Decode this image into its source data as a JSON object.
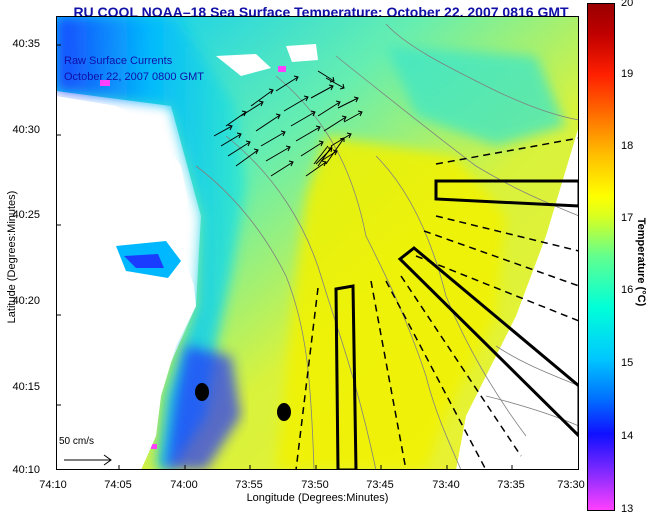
{
  "title": "RU COOL  NOAA–18  Sea Surface Temperature:  October 22, 2007 0816 GMT",
  "legend": {
    "line1": "Raw Surface Currents",
    "line2": "October 22, 2007 0800 GMT"
  },
  "scale_label": "50 cm/s",
  "y_axis": {
    "label": "Latitude (Degrees:Minutes)",
    "ticks": [
      "40:35",
      "40:30",
      "40:25",
      "40:20",
      "40:15",
      "40:10"
    ]
  },
  "x_axis": {
    "label": "Longitude (Degrees:Minutes)",
    "ticks": [
      "74:10",
      "74:05",
      "74:00",
      "73:55",
      "73:50",
      "73:45",
      "73:40",
      "73:35",
      "73:30"
    ]
  },
  "colorbar": {
    "label": "Temperature (°C)",
    "ticks": [
      "20",
      "19",
      "18",
      "17",
      "16",
      "15",
      "14",
      "13"
    ],
    "min": 13,
    "max": 20,
    "colors": [
      "#ff3fff",
      "#1010ff",
      "#00c8ff",
      "#00ffcc",
      "#ffff00",
      "#ff8800",
      "#ff0000",
      "#a00000"
    ]
  },
  "markers": [
    {
      "name": "site-marker-1",
      "lon_label": "73:59",
      "lat_label": "40:14.5"
    },
    {
      "name": "site-marker-2",
      "lon_label": "73:52.5",
      "lat_label": "40:13.5"
    }
  ],
  "colors": {
    "title": "#1010a8",
    "land": "#ffffff",
    "contour": "#808080",
    "vector": "#000000",
    "outline": "#000000"
  }
}
